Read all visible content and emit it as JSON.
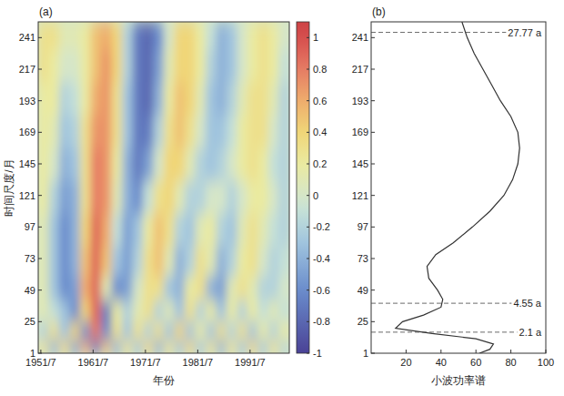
{
  "chart_data": [
    {
      "type": "heatmap",
      "title": "(a)",
      "x_label": "年份",
      "y_label": "时间尺度/月",
      "x": [
        1952,
        1954,
        1956,
        1958,
        1960,
        1962,
        1964,
        1966,
        1968,
        1970,
        1972,
        1974,
        1976,
        1978,
        1980,
        1982,
        1984,
        1986,
        1988,
        1990,
        1992,
        1994,
        1996,
        1998
      ],
      "y": [
        5,
        17,
        33,
        50,
        70,
        95,
        120,
        145,
        170,
        195,
        220,
        245
      ],
      "cells": [
        [
          0.3,
          -0.4,
          0.4,
          -0.5,
          0.6,
          -0.7,
          0.5,
          -0.4,
          0.3,
          -0.3,
          0.4,
          -0.4,
          0.3,
          -0.3,
          0.4,
          -0.3,
          0.3,
          -0.4,
          0.3,
          -0.3,
          0.4,
          -0.3,
          0.3,
          -0.2
        ],
        [
          -0.2,
          0.3,
          -0.3,
          0.4,
          -0.6,
          0.8,
          -0.6,
          0.3,
          -0.3,
          0.3,
          -0.2,
          0.3,
          -0.3,
          0.4,
          -0.3,
          0.2,
          -0.3,
          0.3,
          -0.2,
          0.3,
          -0.3,
          0.2,
          -0.2,
          0.2
        ],
        [
          0.1,
          -0.1,
          -0.3,
          -0.6,
          0.4,
          0.9,
          -0.7,
          0.2,
          -0.2,
          0.1,
          0.3,
          -0.2,
          0.1,
          -0.3,
          0.3,
          -0.2,
          0.2,
          -0.3,
          0.2,
          -0.2,
          0.2,
          -0.1,
          0.1,
          -0.1
        ],
        [
          0.1,
          -0.3,
          -0.6,
          -0.5,
          0.6,
          0.9,
          0.1,
          -0.6,
          -0.5,
          0,
          0.3,
          0.3,
          -0.3,
          -0.4,
          0.2,
          0.3,
          -0.4,
          -0.5,
          0.1,
          0.3,
          0.1,
          -0.2,
          -0.2,
          0
        ],
        [
          0.1,
          -0.3,
          -0.6,
          -0.4,
          0.5,
          0.9,
          0.5,
          -0.3,
          -0.5,
          -0.2,
          0.3,
          0.5,
          0.1,
          -0.4,
          -0.2,
          0.3,
          0.1,
          -0.4,
          -0.2,
          0.2,
          0.3,
          0,
          -0.2,
          -0.1
        ],
        [
          0.1,
          -0.3,
          -0.6,
          -0.4,
          0.4,
          0.9,
          0.6,
          -0.1,
          -0.5,
          -0.3,
          0.2,
          0.5,
          0.3,
          -0.2,
          -0.3,
          0.1,
          0.2,
          -0.2,
          -0.3,
          0.1,
          0.3,
          0.1,
          -0.1,
          -0.2
        ],
        [
          0.2,
          -0.2,
          -0.5,
          -0.4,
          0.3,
          0.8,
          0.7,
          0.1,
          -0.4,
          -0.6,
          -0.1,
          0.3,
          0.4,
          0.1,
          -0.2,
          -0.2,
          0,
          0,
          -0.2,
          0,
          0.2,
          0.2,
          0,
          -0.2
        ],
        [
          0.2,
          0,
          -0.4,
          -0.3,
          0.3,
          0.8,
          0.7,
          0.2,
          -0.4,
          -0.7,
          -0.5,
          0,
          0.4,
          0.4,
          0.1,
          -0.2,
          -0.3,
          -0.2,
          0,
          0.2,
          0.3,
          0.2,
          -0.1,
          -0.2
        ],
        [
          0.2,
          0.1,
          -0.3,
          -0.2,
          0.3,
          0.7,
          0.7,
          0.3,
          -0.3,
          -0.7,
          -0.7,
          -0.2,
          0.3,
          0.5,
          0.3,
          0,
          -0.3,
          -0.3,
          -0.1,
          0.2,
          0.3,
          0.3,
          0,
          -0.2
        ],
        [
          0.2,
          0.2,
          -0.2,
          -0.1,
          0.2,
          0.6,
          0.7,
          0.3,
          -0.3,
          -0.7,
          -0.8,
          -0.4,
          0.2,
          0.5,
          0.4,
          0.1,
          -0.3,
          -0.4,
          -0.2,
          0.1,
          0.3,
          0.3,
          0.1,
          -0.2
        ],
        [
          0.3,
          0.2,
          0,
          0,
          0.2,
          0.5,
          0.7,
          0.4,
          -0.2,
          -0.7,
          -0.8,
          -0.5,
          0.1,
          0.4,
          0.4,
          0.2,
          -0.2,
          -0.4,
          -0.3,
          0,
          0.2,
          0.3,
          0.2,
          -0.1
        ],
        [
          0.3,
          0.3,
          0.1,
          0.1,
          0.2,
          0.5,
          0.6,
          0.4,
          -0.2,
          -0.7,
          -0.8,
          -0.6,
          0,
          0.4,
          0.4,
          0.2,
          -0.1,
          -0.4,
          -0.3,
          0,
          0.2,
          0.3,
          0.2,
          0
        ]
      ],
      "xlim": [
        1951,
        1999
      ],
      "xticks": [
        {
          "value": 1951.5,
          "label": "1951/7"
        },
        {
          "value": 1961.5,
          "label": "1961/7"
        },
        {
          "value": 1971.5,
          "label": "1971/7"
        },
        {
          "value": 1981.5,
          "label": "1981/7"
        },
        {
          "value": 1991.5,
          "label": "1991/7"
        }
      ],
      "ylim": [
        1,
        253
      ],
      "yticks": [
        1,
        25,
        49,
        73,
        97,
        121,
        145,
        169,
        193,
        217,
        241
      ],
      "colorbar_lim": [
        -1,
        1.1
      ],
      "colorbar_ticks": [
        1,
        0.8,
        0.6,
        0.4,
        0.2,
        0,
        -0.2,
        -0.4,
        -0.6,
        -0.8,
        -1
      ]
    },
    {
      "type": "line",
      "title": "(b)",
      "x_label": "小波功率谱",
      "orientation": "horizontal",
      "color": "#333333",
      "y": [
        1,
        4,
        8,
        12,
        16,
        20,
        25,
        30,
        36,
        42,
        49,
        58,
        67,
        76,
        85,
        97,
        109,
        121,
        133,
        145,
        157,
        169,
        181,
        193,
        205,
        217,
        229,
        241,
        253
      ],
      "values": [
        62,
        68,
        70,
        60,
        35,
        14,
        18,
        30,
        40,
        41,
        38,
        33,
        32,
        37,
        47,
        58,
        68,
        76,
        81,
        84,
        85,
        84,
        80,
        74,
        69,
        64,
        59,
        55,
        52
      ],
      "xlim": [
        0,
        100
      ],
      "xticks": [
        20,
        40,
        60,
        80,
        100
      ],
      "ylim": [
        1,
        253
      ],
      "yticks": [
        1,
        25,
        49,
        73,
        97,
        121,
        145,
        169,
        193,
        217,
        241
      ],
      "annotations": [
        {
          "y": 17,
          "label": "2.1 a"
        },
        {
          "y": 39,
          "label": "4.55 a"
        },
        {
          "y": 245,
          "label": "27.77 a"
        }
      ]
    }
  ]
}
